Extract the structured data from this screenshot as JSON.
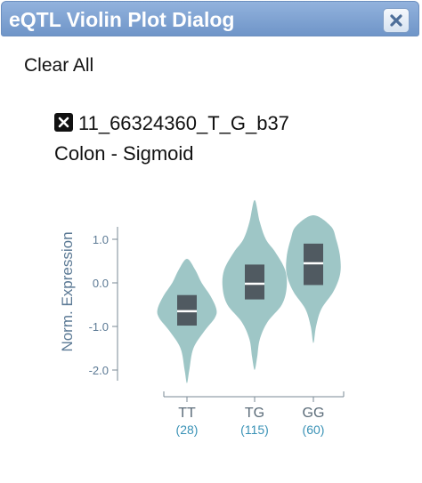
{
  "dialog": {
    "title": "eQTL Violin Plot Dialog",
    "close_icon": "close-icon",
    "clear_all_label": "Clear All",
    "variant_close_icon": "close-square-icon",
    "variant_id": "11_66324360_T_G_b37",
    "tissue": "Colon - Sigmoid"
  },
  "colors": {
    "titlebar": "#7ea0d2",
    "violin_fill": "#9ec6c6",
    "box_fill": "#505a61",
    "median": "#ffffff",
    "axis": "#7a8a96",
    "axis_label": "#5c7a95",
    "count_label": "#3a92b6"
  },
  "chart_data": {
    "type": "violin",
    "ylabel": "Norm. Expression",
    "ylim": [
      -2.3,
      2.0
    ],
    "yticks": [
      1.0,
      0.0,
      -1.0,
      -2.0
    ],
    "ytick_labels": [
      "1.0",
      "0.0",
      "-1.0",
      "-2.0"
    ],
    "categories": [
      "TT",
      "TG",
      "GG"
    ],
    "counts": [
      "(28)",
      "(115)",
      "(60)"
    ],
    "groups": [
      {
        "genotype": "TT",
        "min": -2.3,
        "max": 0.55,
        "q1": -0.98,
        "median": -0.65,
        "q3": -0.28,
        "density": [
          [
            -2.3,
            0.0
          ],
          [
            -2.0,
            0.08
          ],
          [
            -1.5,
            0.22
          ],
          [
            -1.1,
            0.6
          ],
          [
            -0.8,
            0.95
          ],
          [
            -0.6,
            1.0
          ],
          [
            -0.3,
            0.8
          ],
          [
            0.0,
            0.5
          ],
          [
            0.3,
            0.28
          ],
          [
            0.55,
            0.0
          ]
        ]
      },
      {
        "genotype": "TG",
        "min": -2.0,
        "max": 1.9,
        "q1": -0.38,
        "median": -0.02,
        "q3": 0.42,
        "density": [
          [
            -2.0,
            0.0
          ],
          [
            -1.7,
            0.08
          ],
          [
            -1.3,
            0.16
          ],
          [
            -0.9,
            0.4
          ],
          [
            -0.5,
            0.85
          ],
          [
            -0.1,
            1.0
          ],
          [
            0.3,
            0.95
          ],
          [
            0.7,
            0.65
          ],
          [
            1.0,
            0.35
          ],
          [
            1.4,
            0.16
          ],
          [
            1.9,
            0.0
          ]
        ]
      },
      {
        "genotype": "GG",
        "min": -1.38,
        "max": 1.55,
        "q1": -0.05,
        "median": 0.45,
        "q3": 0.9,
        "density": [
          [
            -1.38,
            0.0
          ],
          [
            -1.0,
            0.1
          ],
          [
            -0.6,
            0.3
          ],
          [
            -0.2,
            0.75
          ],
          [
            0.2,
            1.0
          ],
          [
            0.6,
            1.0
          ],
          [
            1.0,
            0.85
          ],
          [
            1.3,
            0.65
          ],
          [
            1.55,
            0.0
          ]
        ]
      }
    ]
  }
}
